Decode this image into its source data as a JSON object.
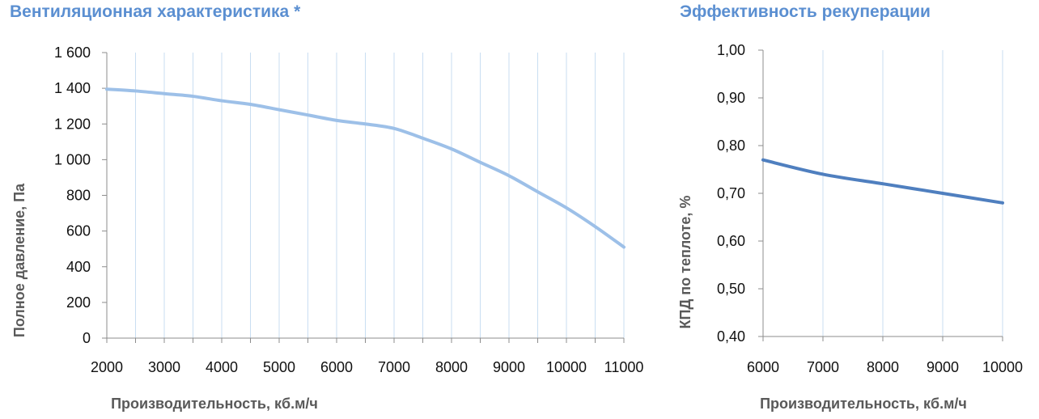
{
  "chart_data": [
    {
      "type": "line",
      "title": "Вентиляционная характеристика *",
      "xlabel": "Производительность, кб.м/ч",
      "ylabel": "Полное  давление, Па",
      "xlim": [
        2000,
        11000
      ],
      "ylim": [
        0,
        1600
      ],
      "x_ticks": [
        2000,
        3000,
        4000,
        5000,
        6000,
        7000,
        8000,
        9000,
        10000,
        11000
      ],
      "y_ticks": [
        0,
        200,
        400,
        600,
        800,
        1000,
        1200,
        1400,
        1600
      ],
      "y_tick_labels": [
        "0",
        "200",
        "400",
        "600",
        "800",
        "1 000",
        "1 200",
        "1 400",
        "1 600"
      ],
      "grid": true,
      "color": "#9dc0e8",
      "series": [
        {
          "x": [
            2000,
            2500,
            3000,
            3500,
            4000,
            4500,
            5000,
            5500,
            6000,
            6500,
            7000,
            7500,
            8000,
            8500,
            9000,
            9500,
            10000,
            10500,
            11000
          ],
          "y": [
            1395,
            1385,
            1370,
            1355,
            1330,
            1310,
            1280,
            1250,
            1220,
            1200,
            1175,
            1120,
            1060,
            985,
            910,
            820,
            730,
            625,
            510
          ]
        }
      ]
    },
    {
      "type": "line",
      "title": "Эффективность рекуперации",
      "xlabel": "Производительность, кб.м/ч",
      "ylabel": "КПД по теплоте, %",
      "xlim": [
        6000,
        10000
      ],
      "ylim": [
        0.4,
        1.0
      ],
      "x_ticks": [
        6000,
        7000,
        8000,
        9000,
        10000
      ],
      "y_ticks": [
        0.4,
        0.5,
        0.6,
        0.7,
        0.8,
        0.9,
        1.0
      ],
      "y_tick_labels": [
        "0,40",
        "0,50",
        "0,60",
        "0,70",
        "0,80",
        "0,90",
        "1,00"
      ],
      "grid": true,
      "color": "#4f7fbf",
      "series": [
        {
          "x": [
            6000,
            7000,
            8000,
            9000,
            10000
          ],
          "y": [
            0.77,
            0.74,
            0.72,
            0.7,
            0.68
          ]
        }
      ]
    }
  ]
}
